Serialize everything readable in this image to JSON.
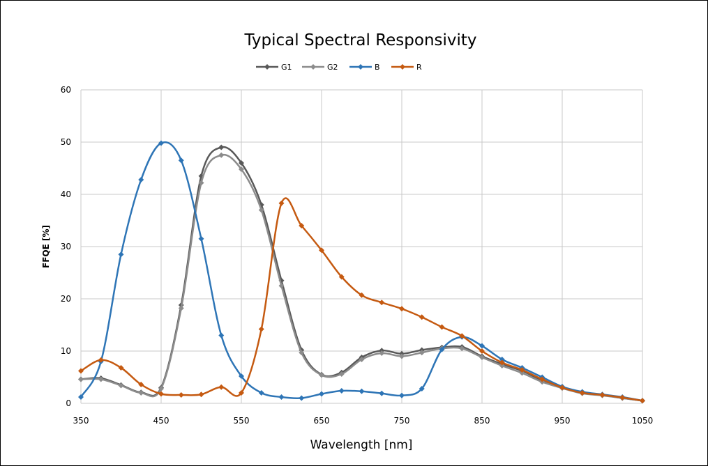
{
  "chart_data": {
    "type": "line",
    "title": "Typical Spectral Responsivity",
    "xlabel": "Wavelength [nm]",
    "ylabel": "FFQE [%]",
    "xlim": [
      350,
      1050
    ],
    "ylim": [
      0,
      60
    ],
    "x_ticks": [
      "350",
      "450",
      "550",
      "650",
      "750",
      "850",
      "950",
      "1050"
    ],
    "y_ticks": [
      "0",
      "10",
      "20",
      "30",
      "40",
      "50",
      "60"
    ],
    "grid": true,
    "legend_position": "top",
    "smooth": true,
    "series": [
      {
        "name": "G1",
        "color": "#595959",
        "points": [
          [
            350,
            4.6
          ],
          [
            375,
            4.8
          ],
          [
            400,
            3.5
          ],
          [
            425,
            2.1
          ],
          [
            450,
            3.0
          ],
          [
            475,
            18.8
          ],
          [
            500,
            43.5
          ],
          [
            525,
            49.0
          ],
          [
            550,
            46.0
          ],
          [
            575,
            38.0
          ],
          [
            600,
            23.5
          ],
          [
            625,
            10.2
          ],
          [
            650,
            5.5
          ],
          [
            675,
            5.9
          ],
          [
            700,
            8.8
          ],
          [
            725,
            10.1
          ],
          [
            750,
            9.5
          ],
          [
            775,
            10.2
          ],
          [
            800,
            10.7
          ],
          [
            825,
            10.8
          ],
          [
            850,
            9.0
          ],
          [
            875,
            7.5
          ],
          [
            900,
            6.2
          ],
          [
            925,
            4.4
          ],
          [
            950,
            3.1
          ],
          [
            975,
            2.0
          ],
          [
            1000,
            1.6
          ],
          [
            1025,
            1.0
          ],
          [
            1050,
            0.5
          ]
        ]
      },
      {
        "name": "G2",
        "color": "#8c8c8c",
        "points": [
          [
            350,
            4.6
          ],
          [
            375,
            4.6
          ],
          [
            400,
            3.4
          ],
          [
            425,
            2.0
          ],
          [
            450,
            2.8
          ],
          [
            475,
            18.2
          ],
          [
            500,
            42.2
          ],
          [
            525,
            47.5
          ],
          [
            550,
            44.8
          ],
          [
            575,
            37.0
          ],
          [
            600,
            22.5
          ],
          [
            625,
            9.7
          ],
          [
            650,
            5.4
          ],
          [
            675,
            5.6
          ],
          [
            700,
            8.4
          ],
          [
            725,
            9.6
          ],
          [
            750,
            9.0
          ],
          [
            775,
            9.7
          ],
          [
            800,
            10.5
          ],
          [
            825,
            10.5
          ],
          [
            850,
            8.8
          ],
          [
            875,
            7.2
          ],
          [
            900,
            5.8
          ],
          [
            925,
            4.1
          ],
          [
            950,
            2.9
          ],
          [
            975,
            1.9
          ],
          [
            1000,
            1.5
          ],
          [
            1025,
            1.0
          ],
          [
            1050,
            0.5
          ]
        ]
      },
      {
        "name": "B",
        "color": "#2e75b6",
        "points": [
          [
            350,
            1.2
          ],
          [
            375,
            8.0
          ],
          [
            400,
            28.5
          ],
          [
            425,
            42.8
          ],
          [
            450,
            49.8
          ],
          [
            475,
            46.5
          ],
          [
            500,
            31.5
          ],
          [
            525,
            13.0
          ],
          [
            550,
            5.2
          ],
          [
            575,
            2.0
          ],
          [
            600,
            1.2
          ],
          [
            625,
            1.0
          ],
          [
            650,
            1.8
          ],
          [
            675,
            2.4
          ],
          [
            700,
            2.3
          ],
          [
            725,
            1.9
          ],
          [
            750,
            1.5
          ],
          [
            775,
            2.8
          ],
          [
            800,
            10.3
          ],
          [
            825,
            12.7
          ],
          [
            850,
            11.0
          ],
          [
            875,
            8.4
          ],
          [
            900,
            6.8
          ],
          [
            925,
            5.0
          ],
          [
            950,
            3.2
          ],
          [
            975,
            2.2
          ],
          [
            1000,
            1.7
          ],
          [
            1025,
            1.2
          ],
          [
            1050,
            0.5
          ]
        ]
      },
      {
        "name": "R",
        "color": "#c55a11",
        "points": [
          [
            350,
            6.2
          ],
          [
            375,
            8.3
          ],
          [
            400,
            6.8
          ],
          [
            425,
            3.6
          ],
          [
            450,
            1.8
          ],
          [
            475,
            1.6
          ],
          [
            500,
            1.7
          ],
          [
            525,
            3.1
          ],
          [
            550,
            2.0
          ],
          [
            575,
            14.2
          ],
          [
            600,
            38.3
          ],
          [
            625,
            34.0
          ],
          [
            650,
            29.3
          ],
          [
            675,
            24.2
          ],
          [
            700,
            20.7
          ],
          [
            725,
            19.3
          ],
          [
            750,
            18.1
          ],
          [
            775,
            16.5
          ],
          [
            800,
            14.6
          ],
          [
            825,
            12.9
          ],
          [
            850,
            10.0
          ],
          [
            875,
            7.8
          ],
          [
            900,
            6.4
          ],
          [
            925,
            4.6
          ],
          [
            950,
            3.0
          ],
          [
            975,
            2.0
          ],
          [
            1000,
            1.6
          ],
          [
            1025,
            1.1
          ],
          [
            1050,
            0.5
          ]
        ]
      }
    ]
  }
}
